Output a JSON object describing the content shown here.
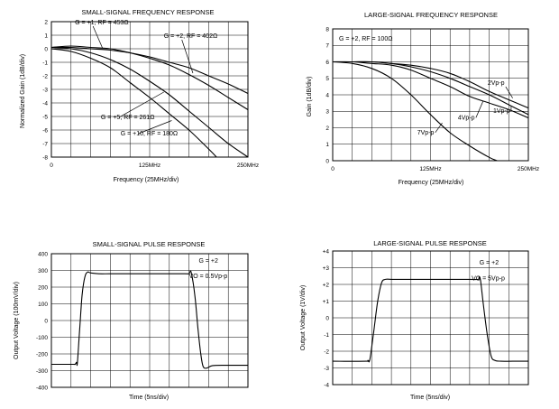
{
  "chart_data": [
    {
      "id": "ssfr",
      "type": "line",
      "title": "SMALL-SIGNAL FREQUENCY RESPONSE",
      "xlabel": "Frequency (25MHz/div)",
      "ylabel": "Normalized Gain (1dB/div)",
      "xlim": [
        0,
        250
      ],
      "ylim": [
        -8,
        2
      ],
      "xdivs": 10,
      "ydivs": 10,
      "xticks": [
        {
          "v": 0,
          "label": "0"
        },
        {
          "v": 125,
          "label": "125MHz"
        },
        {
          "v": 250,
          "label": "250MHz"
        }
      ],
      "yticks": [
        {
          "v": 2,
          "label": "2"
        },
        {
          "v": 1,
          "label": "1"
        },
        {
          "v": 0,
          "label": "0"
        },
        {
          "v": -1,
          "label": "-1"
        },
        {
          "v": -2,
          "label": "-2"
        },
        {
          "v": -3,
          "label": "-3"
        },
        {
          "v": -4,
          "label": "-4"
        },
        {
          "v": -5,
          "label": "-5"
        },
        {
          "v": -6,
          "label": "-6"
        },
        {
          "v": -7,
          "label": "-7"
        },
        {
          "v": -8,
          "label": "-8"
        }
      ],
      "series": [
        {
          "name": "G = +1, RF = 453Ω",
          "x": [
            0,
            25,
            50,
            75,
            100,
            125,
            150,
            175,
            200,
            225,
            250
          ],
          "y": [
            0.1,
            0.1,
            0.0,
            -0.1,
            -0.3,
            -0.6,
            -1.0,
            -1.4,
            -2.0,
            -2.6,
            -3.3
          ]
        },
        {
          "name": "G = +2, RF = 402Ω",
          "x": [
            0,
            25,
            50,
            75,
            100,
            125,
            150,
            175,
            200,
            225,
            250
          ],
          "y": [
            0.1,
            0.2,
            0.1,
            0.0,
            -0.3,
            -0.7,
            -1.2,
            -1.9,
            -2.7,
            -3.6,
            -4.5
          ]
        },
        {
          "name": "G = +5, RF = 261Ω",
          "x": [
            0,
            25,
            50,
            75,
            100,
            125,
            150,
            175,
            200,
            225,
            250
          ],
          "y": [
            0.1,
            0.0,
            -0.3,
            -0.8,
            -1.5,
            -2.4,
            -3.4,
            -4.6,
            -5.8,
            -7.0,
            -8.0
          ]
        },
        {
          "name": "G = +10, RF = 180Ω",
          "x": [
            0,
            25,
            50,
            75,
            100,
            125,
            150,
            175,
            200,
            210
          ],
          "y": [
            0.0,
            -0.2,
            -0.7,
            -1.4,
            -2.5,
            -3.6,
            -4.8,
            -6.0,
            -7.4,
            -8.0
          ]
        }
      ],
      "annotations": [
        {
          "text": "G = +1, RF = 453Ω",
          "x": 30,
          "y": 1.8,
          "ax": 65,
          "ay": 0.05
        },
        {
          "text": "G = +2, RF = 402Ω",
          "x": 143,
          "y": 0.8,
          "ax": 180,
          "ay": -1.8
        },
        {
          "text": "G = +5, RF = 261Ω",
          "x": 63,
          "y": -5.2,
          "ax": 143,
          "ay": -3.2
        },
        {
          "text": "G = +10, RF = 180Ω",
          "x": 88,
          "y": -6.4,
          "ax": 153,
          "ay": -5.3
        }
      ]
    },
    {
      "id": "lsfr",
      "type": "line",
      "title": "LARGE-SIGNAL FREQUENCY RESPONSE",
      "xlabel": "Frequency (25MHz/div)",
      "ylabel": "Gain (1dB/div)",
      "xlim": [
        0,
        250
      ],
      "ylim": [
        0,
        8
      ],
      "xdivs": 10,
      "ydivs": 8,
      "xticks": [
        {
          "v": 0,
          "label": "0"
        },
        {
          "v": 125,
          "label": "125MHz"
        },
        {
          "v": 250,
          "label": "250MHz"
        }
      ],
      "yticks": [
        {
          "v": 8,
          "label": "8"
        },
        {
          "v": 7,
          "label": "7"
        },
        {
          "v": 6,
          "label": "6"
        },
        {
          "v": 5,
          "label": "5"
        },
        {
          "v": 4,
          "label": "4"
        },
        {
          "v": 3,
          "label": "3"
        },
        {
          "v": 2,
          "label": "2"
        },
        {
          "v": 1,
          "label": "1"
        },
        {
          "v": 0,
          "label": "0"
        }
      ],
      "series": [
        {
          "name": "1Vp-p",
          "x": [
            0,
            25,
            50,
            75,
            100,
            125,
            150,
            175,
            200,
            225,
            250
          ],
          "y": [
            6.0,
            6.0,
            6.0,
            5.9,
            5.7,
            5.4,
            5.0,
            4.5,
            4.0,
            3.4,
            2.8
          ]
        },
        {
          "name": "2Vp-p",
          "x": [
            0,
            25,
            50,
            75,
            100,
            125,
            150,
            175,
            200,
            225,
            250
          ],
          "y": [
            6.0,
            6.0,
            6.0,
            5.9,
            5.8,
            5.6,
            5.3,
            4.8,
            4.2,
            3.7,
            3.2
          ]
        },
        {
          "name": "4Vp-p",
          "x": [
            0,
            25,
            50,
            75,
            100,
            125,
            150,
            175,
            200,
            225,
            250
          ],
          "y": [
            6.0,
            6.0,
            5.9,
            5.8,
            5.5,
            5.0,
            4.5,
            3.9,
            3.5,
            3.1,
            2.6
          ]
        },
        {
          "name": "7Vp-p",
          "x": [
            0,
            25,
            50,
            75,
            100,
            125,
            150,
            175,
            200,
            210
          ],
          "y": [
            6.0,
            5.9,
            5.6,
            5.0,
            4.0,
            2.8,
            1.7,
            0.9,
            0.2,
            0.0
          ]
        }
      ],
      "annotations": [
        {
          "text": "G = +2, RF = 100Ω",
          "x": 8,
          "y": 7.3
        },
        {
          "text": "2Vp-p",
          "x": 198,
          "y": 4.6,
          "ax": 230,
          "ay": 3.8
        },
        {
          "text": "1Vp-p",
          "x": 205,
          "y": 2.9,
          "ax": 228,
          "ay": 3.3
        },
        {
          "text": "4Vp-p",
          "x": 160,
          "y": 2.5,
          "ax": 192,
          "ay": 3.6
        },
        {
          "text": "7Vp-p",
          "x": 108,
          "y": 1.6,
          "ax": 140,
          "ay": 2.3
        }
      ]
    },
    {
      "id": "sspr",
      "type": "line",
      "title": "SMALL-SIGNAL PULSE RESPONSE",
      "xlabel": "Time (5ns/div)",
      "ylabel": "Output Voltage (100mV/div)",
      "xlim": [
        0,
        50
      ],
      "ylim": [
        -400,
        400
      ],
      "xdivs": 10,
      "ydivs": 8,
      "xticks": [],
      "yticks": [
        {
          "v": 400,
          "label": "400"
        },
        {
          "v": 300,
          "label": "300"
        },
        {
          "v": 200,
          "label": "200"
        },
        {
          "v": 100,
          "label": "100"
        },
        {
          "v": 0,
          "label": "0"
        },
        {
          "v": -100,
          "label": "-100"
        },
        {
          "v": -200,
          "label": "-200"
        },
        {
          "v": -300,
          "label": "-300"
        },
        {
          "v": -400,
          "label": "-400"
        }
      ],
      "series": [
        {
          "name": "output",
          "x": [
            0,
            5.5,
            6.0,
            6.4,
            6.6,
            7.2,
            7.8,
            8.5,
            9.2,
            10,
            12,
            15,
            20,
            25,
            30,
            34,
            35.0,
            35.2,
            35.6,
            36.5,
            37.3,
            38.0,
            38.6,
            39.5,
            41,
            45,
            50
          ],
          "y": [
            -262,
            -262,
            -262,
            -250,
            -255,
            -50,
            150,
            260,
            290,
            285,
            280,
            280,
            280,
            280,
            280,
            280,
            280,
            290,
            285,
            150,
            -50,
            -200,
            -275,
            -285,
            -270,
            -268,
            -268
          ]
        }
      ],
      "annotations": [
        {
          "text": "G = +2",
          "x": 37.5,
          "y": 345
        },
        {
          "text": "VO = 0.5Vp-p",
          "x": 35,
          "y": 255
        }
      ]
    },
    {
      "id": "lspr",
      "type": "line",
      "title": "LARGE-SIGNAL PULSE RESPONSE",
      "xlabel": "Time (5ns/div)",
      "ylabel": "Output Voltage (1V/div)",
      "xlim": [
        0,
        50
      ],
      "ylim": [
        -4,
        4
      ],
      "xdivs": 10,
      "ydivs": 8,
      "xticks": [],
      "yticks": [
        {
          "v": 4,
          "label": "+4"
        },
        {
          "v": 3,
          "label": "+3"
        },
        {
          "v": 2,
          "label": "+2"
        },
        {
          "v": 1,
          "label": "+1"
        },
        {
          "v": 0,
          "label": "0"
        },
        {
          "v": -1,
          "label": "-1"
        },
        {
          "v": -2,
          "label": "-2"
        },
        {
          "v": -3,
          "label": "-3"
        },
        {
          "v": -4,
          "label": "-4"
        }
      ],
      "series": [
        {
          "name": "output",
          "x": [
            0,
            8.5,
            9.0,
            9.5,
            10.5,
            11.5,
            12.5,
            13.5,
            15,
            20,
            25,
            30,
            35,
            37.2,
            37.4,
            37.8,
            38.5,
            39.5,
            40.5,
            41.5,
            43,
            46,
            50
          ],
          "y": [
            -2.6,
            -2.6,
            -2.55,
            -2.5,
            -0.8,
            1.0,
            2.1,
            2.3,
            2.3,
            2.3,
            2.3,
            2.3,
            2.3,
            2.3,
            2.45,
            2.2,
            0.8,
            -1.0,
            -2.3,
            -2.55,
            -2.6,
            -2.6,
            -2.6
          ]
        }
      ],
      "annotations": [
        {
          "text": "G = +2",
          "x": 37.5,
          "y": 3.2
        },
        {
          "text": "VO = 5Vp-p",
          "x": 35.5,
          "y": 2.25
        }
      ]
    }
  ]
}
